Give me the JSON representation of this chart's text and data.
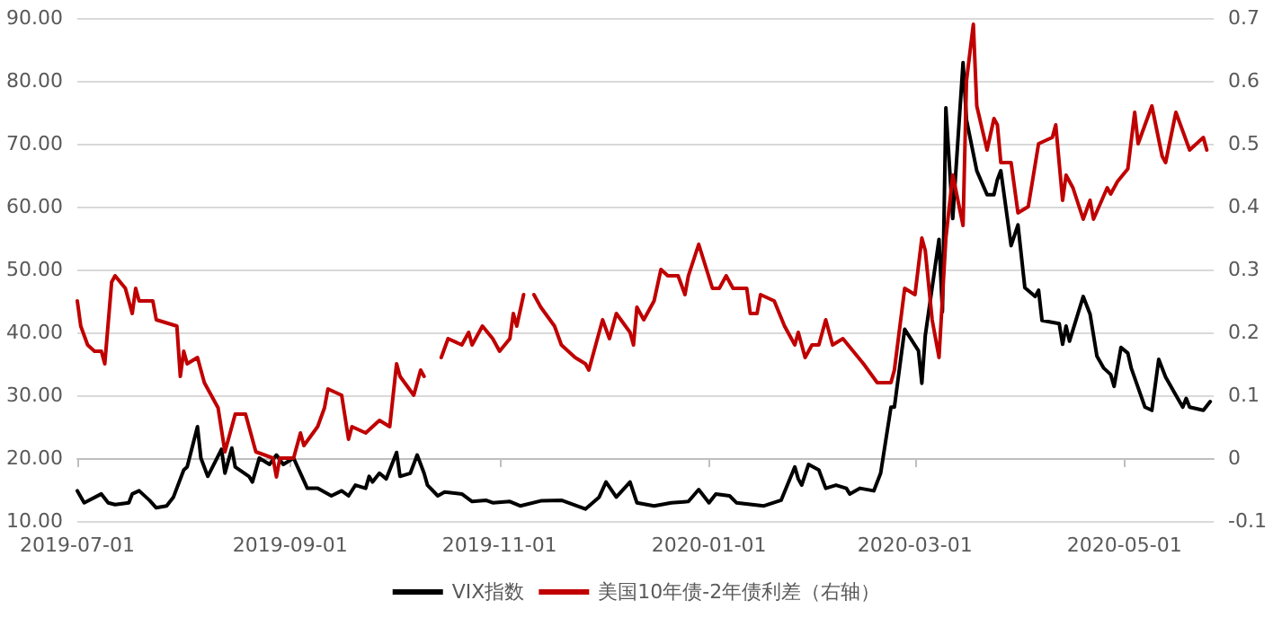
{
  "chart_data": {
    "type": "line",
    "marker": "none",
    "line_style": "solid",
    "grid": "y",
    "legend": "bottom",
    "xlim": [
      "2019-07-01",
      "2020-05-27"
    ],
    "xticks": [
      "2019-07-01",
      "2019-09-01",
      "2019-11-01",
      "2020-01-01",
      "2020-03-01",
      "2020-05-01"
    ],
    "ylim": [
      10,
      90
    ],
    "yticks": [
      {
        "value": 10,
        "label": "10.00"
      },
      {
        "value": 20,
        "label": "20.00"
      },
      {
        "value": 30,
        "label": "30.00"
      },
      {
        "value": 40,
        "label": "40.00"
      },
      {
        "value": 50,
        "label": "50.00"
      },
      {
        "value": 60,
        "label": "60.00"
      },
      {
        "value": 70,
        "label": "70.00"
      },
      {
        "value": 80,
        "label": "80.00"
      },
      {
        "value": 90,
        "label": "90.00"
      }
    ],
    "y2lim": [
      -0.1,
      0.7
    ],
    "y2ticks": [
      -0.1,
      0,
      0.1,
      0.2,
      0.3,
      0.4,
      0.5,
      0.6,
      0.7
    ],
    "series": [
      {
        "name": "VIX指数",
        "color": "#000000",
        "x": [
          "2019-07-01",
          "2019-07-03",
          "2019-07-08",
          "2019-07-10",
          "2019-07-12",
          "2019-07-16",
          "2019-07-17",
          "2019-07-19",
          "2019-07-22",
          "2019-07-24",
          "2019-07-27",
          "2019-07-29",
          "2019-08-01",
          "2019-08-02",
          "2019-08-05",
          "2019-08-06",
          "2019-08-08",
          "2019-08-12",
          "2019-08-13",
          "2019-08-15",
          "2019-08-16",
          "2019-08-20",
          "2019-08-21",
          "2019-08-23",
          "2019-08-26",
          "2019-08-28",
          "2019-08-30",
          "2019-09-02",
          "2019-09-04",
          "2019-09-06",
          "2019-09-09",
          "2019-09-13",
          "2019-09-16",
          "2019-09-18",
          "2019-09-20",
          "2019-09-23",
          "2019-09-24",
          "2019-09-25",
          "2019-09-27",
          "2019-09-29",
          "2019-10-02",
          "2019-10-03",
          "2019-10-06",
          "2019-10-08",
          "2019-10-10",
          "2019-10-11",
          "2019-10-14",
          "2019-10-16",
          "2019-10-21",
          "2019-10-24",
          "2019-10-28",
          "2019-10-30",
          "2019-11-04",
          "2019-11-07",
          "2019-11-13",
          "2019-11-19",
          "2019-11-26",
          "2019-11-30",
          "2019-12-02",
          "2019-12-05",
          "2019-12-09",
          "2019-12-11",
          "2019-12-16",
          "2019-12-21",
          "2019-12-26",
          "2019-12-29",
          "2020-01-01",
          "2020-01-03",
          "2020-01-07",
          "2020-01-09",
          "2020-01-17",
          "2020-01-22",
          "2020-01-26",
          "2020-01-27",
          "2020-01-28",
          "2020-01-30",
          "2020-02-02",
          "2020-02-04",
          "2020-02-07",
          "2020-02-10",
          "2020-02-11",
          "2020-02-14",
          "2020-02-18",
          "2020-02-20",
          "2020-02-23",
          "2020-02-24",
          "2020-02-27",
          "2020-03-02",
          "2020-03-03",
          "2020-03-04",
          "2020-03-08",
          "2020-03-09",
          "2020-03-10",
          "2020-03-12",
          "2020-03-15",
          "2020-03-16",
          "2020-03-19",
          "2020-03-22",
          "2020-03-24",
          "2020-03-25",
          "2020-03-26",
          "2020-03-29",
          "2020-03-31",
          "2020-04-02",
          "2020-04-05",
          "2020-04-06",
          "2020-04-07",
          "2020-04-12",
          "2020-04-13",
          "2020-04-14",
          "2020-04-15",
          "2020-04-19",
          "2020-04-21",
          "2020-04-23",
          "2020-04-25",
          "2020-04-27",
          "2020-04-28",
          "2020-04-30",
          "2020-05-02",
          "2020-05-03",
          "2020-05-07",
          "2020-05-09",
          "2020-05-11",
          "2020-05-13",
          "2020-05-16",
          "2020-05-18",
          "2020-05-19",
          "2020-05-20",
          "2020-05-24",
          "2020-05-26"
        ],
        "values": [
          14.8,
          12.9,
          14.3,
          12.9,
          12.6,
          12.9,
          14.3,
          14.8,
          13.3,
          12.1,
          12.4,
          13.8,
          18.1,
          18.6,
          25.0,
          20.0,
          17.1,
          21.4,
          17.6,
          21.6,
          18.6,
          17.1,
          16.2,
          20.0,
          19.0,
          20.5,
          19.0,
          20.0,
          17.6,
          15.2,
          15.2,
          14.0,
          14.8,
          14.0,
          15.7,
          15.2,
          17.1,
          16.2,
          17.6,
          16.7,
          20.9,
          17.1,
          17.6,
          20.5,
          17.6,
          15.7,
          14.0,
          14.6,
          14.3,
          13.1,
          13.3,
          12.9,
          13.1,
          12.4,
          13.2,
          13.3,
          11.9,
          13.8,
          16.2,
          13.8,
          16.2,
          12.9,
          12.4,
          12.9,
          13.1,
          15.0,
          12.9,
          14.3,
          14.0,
          12.9,
          12.4,
          13.3,
          18.6,
          16.7,
          15.7,
          19.0,
          18.1,
          15.2,
          15.7,
          15.2,
          14.3,
          15.2,
          14.8,
          17.6,
          28.1,
          28.1,
          40.5,
          37.1,
          31.9,
          39.5,
          54.8,
          43.3,
          75.7,
          58.1,
          82.9,
          73.8,
          65.7,
          61.9,
          61.9,
          64.3,
          65.7,
          53.8,
          57.1,
          47.1,
          45.7,
          46.7,
          41.9,
          41.4,
          38.1,
          41.0,
          38.6,
          45.7,
          42.9,
          36.2,
          34.3,
          33.3,
          31.4,
          37.6,
          36.7,
          34.3,
          28.1,
          27.6,
          35.7,
          32.9,
          30.0,
          28.1,
          29.5,
          28.1,
          27.6,
          29.0
        ]
      },
      {
        "name": "美国10年债-2年债利差（右轴）",
        "color": "#c00000",
        "axis": "y2",
        "x": [
          "2019-07-01",
          "2019-07-02",
          "2019-07-04",
          "2019-07-06",
          "2019-07-08",
          "2019-07-09",
          "2019-07-11",
          "2019-07-12",
          "2019-07-15",
          "2019-07-17",
          "2019-07-18",
          "2019-07-19",
          "2019-07-23",
          "2019-07-24",
          "2019-07-30",
          "2019-07-31",
          "2019-08-01",
          "2019-08-02",
          "2019-08-05",
          "2019-08-07",
          "2019-08-09",
          "2019-08-11",
          "2019-08-13",
          "2019-08-16",
          "2019-08-19",
          "2019-08-22",
          "2019-08-27",
          "2019-08-28",
          "2019-08-29",
          "2019-09-02",
          "2019-09-04",
          "2019-09-05",
          "2019-09-09",
          "2019-09-11",
          "2019-09-12",
          "2019-09-16",
          "2019-09-18",
          "2019-09-19",
          "2019-09-23",
          "2019-09-25",
          "2019-09-27",
          "2019-09-30",
          "2019-10-02",
          "2019-10-03",
          "2019-10-07",
          "2019-10-08",
          "2019-10-09",
          "2019-10-10",
          "2019-10-13",
          "2019-10-15",
          "2019-10-17",
          "2019-10-21",
          "2019-10-23",
          "2019-10-24",
          "2019-10-27",
          "2019-10-30",
          "2019-11-01",
          "2019-11-04",
          "2019-11-05",
          "2019-11-06",
          "2019-11-08",
          "2019-11-09",
          "2019-11-11",
          "2019-11-13",
          "2019-11-17",
          "2019-11-19",
          "2019-11-23",
          "2019-11-26",
          "2019-11-27",
          "2019-12-01",
          "2019-12-03",
          "2019-12-05",
          "2019-12-09",
          "2019-12-10",
          "2019-12-11",
          "2019-12-13",
          "2019-12-16",
          "2019-12-18",
          "2019-12-20",
          "2019-12-23",
          "2019-12-25",
          "2019-12-26",
          "2019-12-29",
          "2020-01-02",
          "2020-01-04",
          "2020-01-06",
          "2020-01-08",
          "2020-01-12",
          "2020-01-13",
          "2020-01-15",
          "2020-01-16",
          "2020-01-20",
          "2020-01-23",
          "2020-01-26",
          "2020-01-27",
          "2020-01-29",
          "2020-01-31",
          "2020-02-02",
          "2020-02-04",
          "2020-02-06",
          "2020-02-09",
          "2020-02-12",
          "2020-02-15",
          "2020-02-19",
          "2020-02-23",
          "2020-02-24",
          "2020-02-27",
          "2020-03-01",
          "2020-03-03",
          "2020-03-04",
          "2020-03-06",
          "2020-03-08",
          "2020-03-10",
          "2020-03-12",
          "2020-03-15",
          "2020-03-16",
          "2020-03-18",
          "2020-03-19",
          "2020-03-22",
          "2020-03-24",
          "2020-03-25",
          "2020-03-26",
          "2020-03-29",
          "2020-03-31",
          "2020-04-03",
          "2020-04-06",
          "2020-04-10",
          "2020-04-11",
          "2020-04-13",
          "2020-04-14",
          "2020-04-16",
          "2020-04-19",
          "2020-04-21",
          "2020-04-22",
          "2020-04-26",
          "2020-04-27",
          "2020-04-29",
          "2020-05-02",
          "2020-05-04",
          "2020-05-05",
          "2020-05-09",
          "2020-05-12",
          "2020-05-13",
          "2020-05-16",
          "2020-05-20",
          "2020-05-24",
          "2020-05-25"
        ],
        "values": [
          0.25,
          0.21,
          0.18,
          0.17,
          0.17,
          0.15,
          0.28,
          0.29,
          0.27,
          0.23,
          0.27,
          0.25,
          0.25,
          0.22,
          0.21,
          0.13,
          0.17,
          0.15,
          0.16,
          0.12,
          0.1,
          0.08,
          0.01,
          0.07,
          0.07,
          0.01,
          0.0,
          -0.03,
          0.0,
          0.0,
          0.04,
          0.02,
          0.05,
          0.08,
          0.11,
          0.1,
          0.03,
          0.05,
          0.04,
          0.05,
          0.06,
          0.05,
          0.15,
          0.13,
          0.1,
          0.12,
          0.14,
          0.13,
          null,
          0.16,
          0.19,
          0.18,
          0.2,
          0.18,
          0.21,
          0.19,
          0.17,
          0.19,
          0.23,
          0.21,
          0.26,
          null,
          0.26,
          0.24,
          0.21,
          0.18,
          0.16,
          0.15,
          0.14,
          0.22,
          0.19,
          0.23,
          0.2,
          0.18,
          0.24,
          0.22,
          0.25,
          0.3,
          0.29,
          0.29,
          0.26,
          0.29,
          0.34,
          0.27,
          0.27,
          0.29,
          0.27,
          0.27,
          0.23,
          0.23,
          0.26,
          0.25,
          0.21,
          0.18,
          0.2,
          0.16,
          0.18,
          0.18,
          0.22,
          0.18,
          0.19,
          0.17,
          0.15,
          0.12,
          0.12,
          0.14,
          0.27,
          0.26,
          0.35,
          0.33,
          0.22,
          0.16,
          0.35,
          0.45,
          0.37,
          0.6,
          0.69,
          0.56,
          0.49,
          0.54,
          0.53,
          0.47,
          0.47,
          0.39,
          0.4,
          0.5,
          0.51,
          0.53,
          0.41,
          0.45,
          0.43,
          0.38,
          0.41,
          0.38,
          0.43,
          0.42,
          0.44,
          0.46,
          0.55,
          0.5,
          0.56,
          0.48,
          0.47,
          0.55,
          0.49,
          0.51,
          0.49
        ]
      }
    ]
  }
}
